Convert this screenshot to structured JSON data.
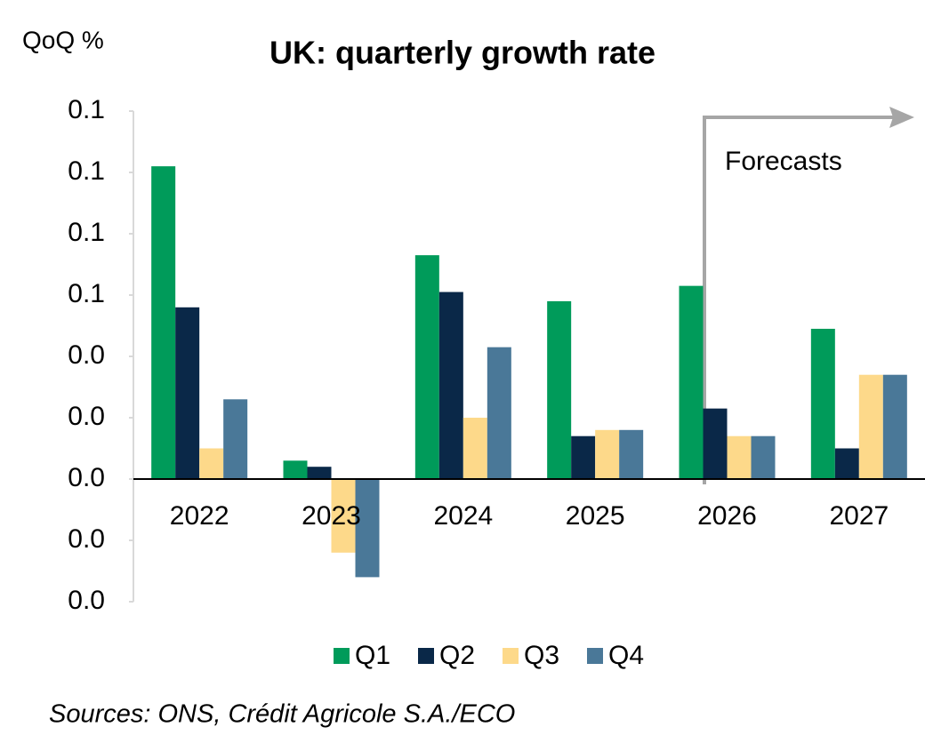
{
  "chart_data": {
    "type": "bar",
    "title": "UK: quarterly growth rate",
    "y_label": "QoQ %",
    "annotation": "Forecasts",
    "source": "Sources: ONS, Crédit Agricole S.A./ECO",
    "categories": [
      "2022",
      "2023",
      "2024",
      "2025",
      "2026",
      "2027"
    ],
    "series": [
      {
        "name": "Q1",
        "color": "#009b5a",
        "values": [
          0.102,
          0.006,
          0.073,
          0.058,
          0.063,
          0.049
        ]
      },
      {
        "name": "Q2",
        "color": "#0a2848",
        "values": [
          0.056,
          0.004,
          0.061,
          0.014,
          0.023,
          0.01
        ]
      },
      {
        "name": "Q3",
        "color": "#fdd98a",
        "values": [
          0.01,
          -0.024,
          0.02,
          0.016,
          0.014,
          0.034
        ]
      },
      {
        "name": "Q4",
        "color": "#4a7898",
        "values": [
          0.026,
          -0.032,
          0.043,
          0.016,
          0.014,
          0.034
        ]
      }
    ],
    "ylim": [
      -0.04,
      0.12
    ],
    "yticks": [
      {
        "value": -0.04,
        "label": "0.0"
      },
      {
        "value": -0.02,
        "label": "0.0"
      },
      {
        "value": 0,
        "label": "0.0"
      },
      {
        "value": 0.02,
        "label": "0.0"
      },
      {
        "value": 0.04,
        "label": "0.0"
      },
      {
        "value": 0.06,
        "label": "0.1"
      },
      {
        "value": 0.08,
        "label": "0.1"
      },
      {
        "value": 0.1,
        "label": "0.1"
      },
      {
        "value": 0.12,
        "label": "0.1"
      }
    ],
    "legend": "bottom"
  }
}
